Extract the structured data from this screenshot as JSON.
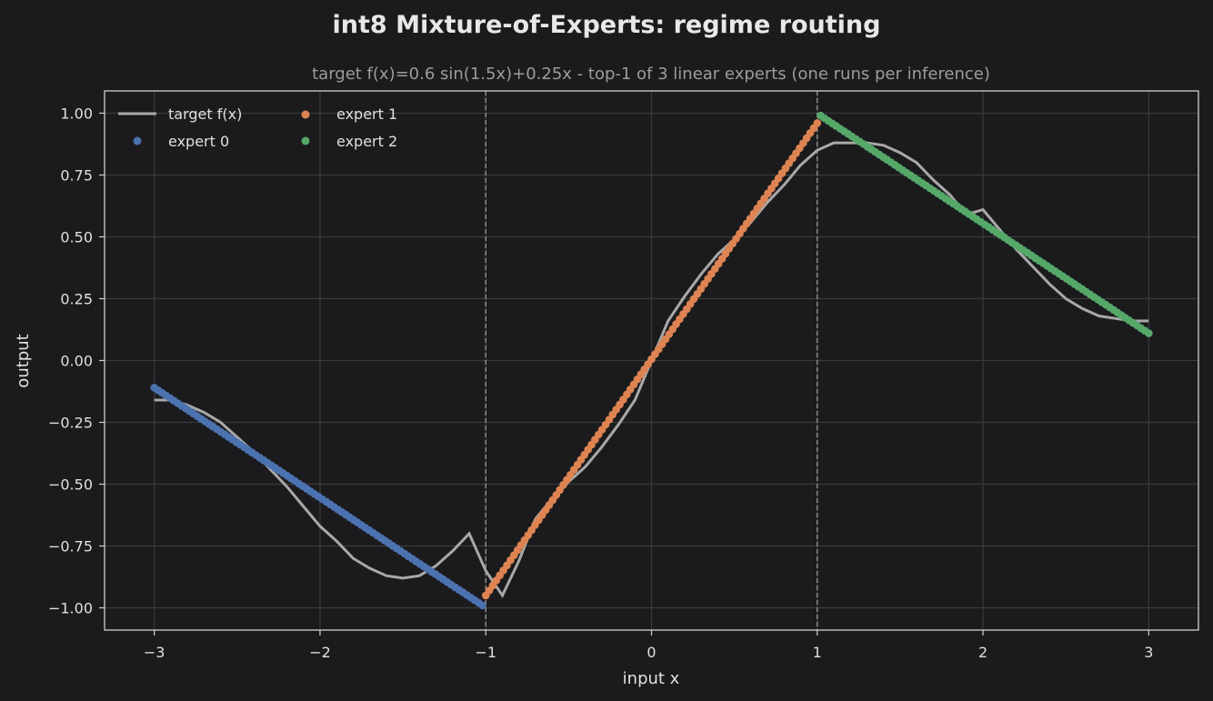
{
  "chart_data": {
    "type": "scatter",
    "title": "int8 Mixture-of-Experts: regime routing",
    "subtitle": "target f(x)=0.6 sin(1.5x)+0.25x  -  top-1 of 3 linear experts (one runs per inference)",
    "xlabel": "input x",
    "ylabel": "output",
    "xlim": [
      -3.3,
      3.3
    ],
    "ylim": [
      -1.09,
      1.09
    ],
    "xticks": [
      -3,
      -2,
      -1,
      0,
      1,
      2,
      3
    ],
    "xtick_labels": [
      "−3",
      "−2",
      "−1",
      "0",
      "1",
      "2",
      "3"
    ],
    "yticks": [
      1.0,
      0.75,
      0.5,
      0.25,
      0.0,
      -0.25,
      -0.5,
      -0.75,
      -1.0
    ],
    "ytick_labels": [
      "1.00",
      "0.75",
      "0.50",
      "0.25",
      "0.00",
      "−0.25",
      "−0.50",
      "−0.75",
      "−1.00"
    ],
    "grid": true,
    "legend_position": "top-left",
    "regime_boundaries": [
      -1,
      1
    ],
    "target": {
      "name": "target f(x)",
      "color": "#a8a8a8",
      "x": [
        -3.0,
        -2.9,
        -2.8,
        -2.7,
        -2.6,
        -2.5,
        -2.4,
        -2.3,
        -2.2,
        -2.1,
        -2.0,
        -1.9,
        -1.8,
        -1.7,
        -1.6,
        -1.5,
        -1.4,
        -1.3,
        -1.2,
        -1.1,
        -1.0,
        -0.9,
        -0.8,
        -0.7,
        -0.6,
        -0.5,
        -0.4,
        -0.3,
        -0.2,
        -0.1,
        0.0,
        0.1,
        0.2,
        0.3,
        0.4,
        0.5,
        0.6,
        0.7,
        0.8,
        0.9,
        1.0,
        1.1,
        1.2,
        1.3,
        1.4,
        1.5,
        1.6,
        1.7,
        1.8,
        1.9,
        2.0,
        2.1,
        2.2,
        2.3,
        2.4,
        2.5,
        2.6,
        2.7,
        2.8,
        2.9,
        3.0
      ],
      "y": [
        -0.16,
        -0.16,
        -0.18,
        -0.21,
        -0.25,
        -0.31,
        -0.37,
        -0.44,
        -0.51,
        -0.59,
        -0.67,
        -0.73,
        -0.8,
        -0.84,
        -0.87,
        -0.88,
        -0.87,
        -0.83,
        -0.77,
        -0.7,
        -0.85,
        -0.95,
        -0.81,
        -0.64,
        -0.56,
        -0.49,
        -0.43,
        -0.35,
        -0.26,
        -0.16,
        0.0,
        0.16,
        0.26,
        0.35,
        0.43,
        0.49,
        0.56,
        0.64,
        0.71,
        0.79,
        0.85,
        0.88,
        0.88,
        0.88,
        0.87,
        0.84,
        0.8,
        0.73,
        0.67,
        0.59,
        0.61,
        0.53,
        0.45,
        0.38,
        0.31,
        0.25,
        0.21,
        0.18,
        0.17,
        0.16,
        0.16
      ]
    },
    "series": [
      {
        "name": "expert 0",
        "color": "#4c72b0",
        "x_range": [
          -3.0,
          -1.02
        ],
        "y_range": [
          -0.11,
          -0.99
        ],
        "points": 85
      },
      {
        "name": "expert 1",
        "color": "#dd8452",
        "x_range": [
          -1.0,
          1.0
        ],
        "y_range": [
          -0.95,
          0.96
        ],
        "points": 95
      },
      {
        "name": "expert 2",
        "color": "#55a868",
        "x_range": [
          1.02,
          3.0
        ],
        "y_range": [
          0.99,
          0.11
        ],
        "points": 85
      }
    ]
  }
}
